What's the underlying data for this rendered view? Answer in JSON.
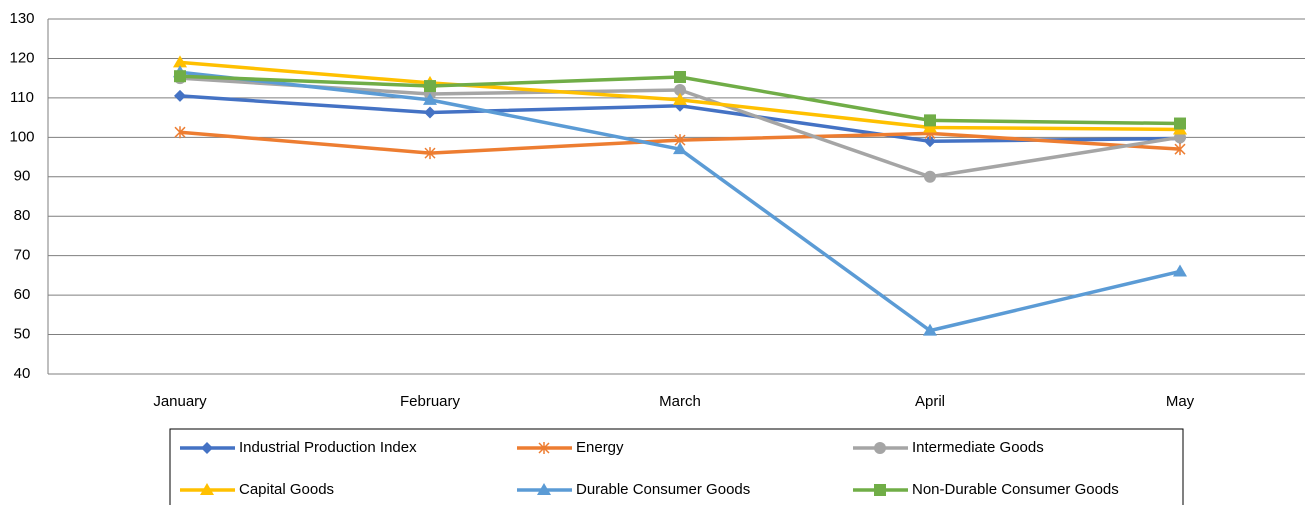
{
  "chart_data": {
    "type": "line",
    "categories": [
      "January",
      "February",
      "March",
      "April",
      "May"
    ],
    "series": [
      {
        "name": "Industrial Production Index",
        "color": "#4472c4",
        "marker": "diamond",
        "values": [
          110.5,
          106.3,
          108,
          99,
          99.7
        ]
      },
      {
        "name": "Energy",
        "color": "#ed7d31",
        "marker": "star",
        "values": [
          101.3,
          96,
          99.3,
          101,
          97
        ]
      },
      {
        "name": "Intermediate Goods",
        "color": "#a5a5a5",
        "marker": "circle",
        "values": [
          115,
          111,
          112,
          90,
          100
        ]
      },
      {
        "name": "Capital Goods",
        "color": "#ffc000",
        "marker": "triangle",
        "values": [
          119,
          113.8,
          109.5,
          102.5,
          102
        ]
      },
      {
        "name": "Durable Consumer Goods",
        "color": "#5b9bd5",
        "marker": "triangle",
        "values": [
          116.5,
          109.5,
          97,
          51,
          66
        ]
      },
      {
        "name": "Non-Durable Consumer Goods",
        "color": "#70ad47",
        "marker": "square",
        "values": [
          115.5,
          113,
          115.3,
          104.3,
          103.5
        ]
      }
    ],
    "ylim": [
      40,
      130
    ],
    "yticks": [
      40,
      50,
      60,
      70,
      80,
      90,
      100,
      110,
      120,
      130
    ],
    "grid": true,
    "legend": "bottom"
  }
}
